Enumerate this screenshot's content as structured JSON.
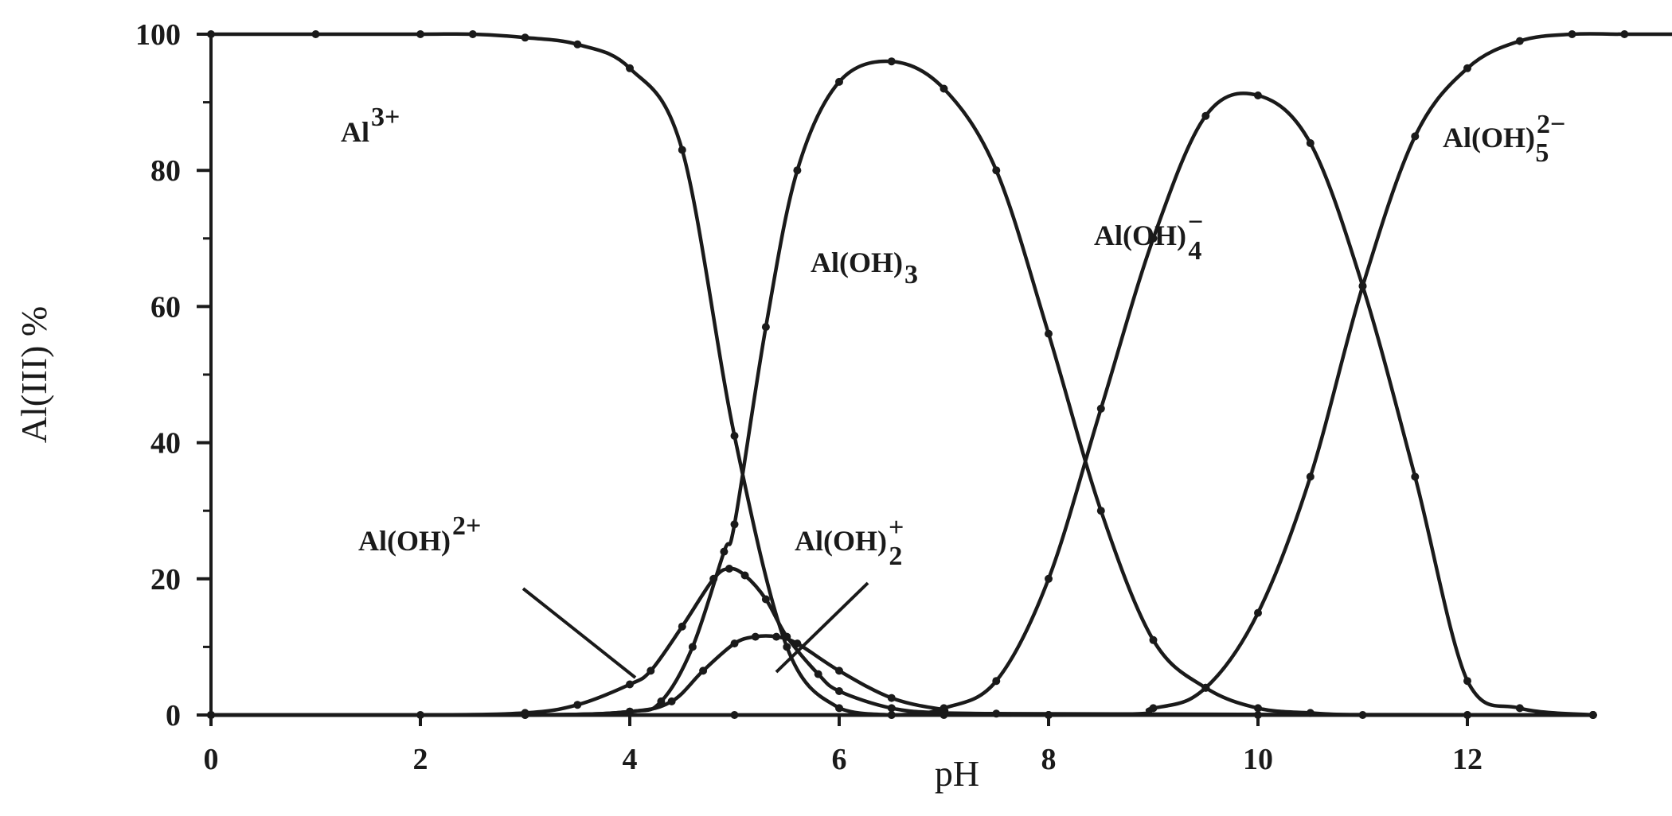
{
  "chart_data": {
    "type": "line",
    "title": "",
    "xlabel": "pH",
    "ylabel": "Al(III) %",
    "xlim": [
      0,
      14
    ],
    "ylim": [
      0,
      100
    ],
    "x_ticks": [
      "0",
      "2",
      "4",
      "6",
      "8",
      "10",
      "12"
    ],
    "y_ticks": [
      "0",
      "20",
      "40",
      "60",
      "80",
      "100"
    ],
    "grid": false,
    "legend": "none",
    "line_color": "#1a1a1a",
    "series": [
      {
        "label": {
          "base": "Al",
          "sup": "3+",
          "sub": ""
        },
        "x": [
          0,
          1,
          2,
          2.5,
          3,
          3.5,
          4,
          4.5,
          5,
          5.5,
          6,
          6.5,
          7,
          8,
          10,
          12,
          13.2
        ],
        "values": [
          100,
          100,
          100,
          100,
          99.5,
          98.5,
          95,
          83,
          41,
          10,
          1,
          0,
          0,
          0,
          0,
          0,
          0
        ]
      },
      {
        "label": {
          "base": "Al(OH)",
          "sup": "2+",
          "sub": ""
        },
        "x": [
          0,
          2,
          3,
          3.5,
          4,
          4.2,
          4.5,
          4.8,
          4.95,
          5.1,
          5.3,
          5.5,
          5.8,
          6,
          6.5,
          7,
          8,
          13.2
        ],
        "values": [
          0,
          0,
          0.3,
          1.5,
          4.5,
          6.5,
          13,
          20,
          21.5,
          20.5,
          17,
          11.5,
          6,
          3.5,
          1,
          0.3,
          0,
          0
        ]
      },
      {
        "label": {
          "base": "Al(OH)",
          "sup": "+",
          "sub": "2"
        },
        "x": [
          0,
          3,
          4,
          4.4,
          4.7,
          5,
          5.2,
          5.4,
          5.6,
          6,
          6.5,
          7,
          7.5,
          13.2
        ],
        "values": [
          0,
          0,
          0.5,
          2,
          6.5,
          10.5,
          11.5,
          11.5,
          10.5,
          6.5,
          2.5,
          0.8,
          0.2,
          0
        ]
      },
      {
        "label": {
          "base": "Al(OH)",
          "sup": "",
          "sub": "3"
        },
        "x": [
          0,
          3,
          4,
          4.3,
          4.6,
          4.9,
          5,
          5.3,
          5.6,
          6,
          6.5,
          7,
          7.5,
          8,
          8.5,
          9,
          9.5,
          10,
          10.5,
          11,
          12,
          13.2
        ],
        "values": [
          0,
          0,
          0.5,
          2,
          10,
          24,
          28,
          57,
          80,
          93,
          96,
          92,
          80,
          56,
          30,
          11,
          4,
          1,
          0.3,
          0,
          0,
          0
        ]
      },
      {
        "label": {
          "base": "Al(OH)",
          "sup": "−",
          "sub": "4"
        },
        "x": [
          0,
          5,
          6.5,
          7,
          7.5,
          8,
          8.5,
          9,
          9.5,
          10,
          10.5,
          11,
          11.5,
          12,
          12.5,
          13.2
        ],
        "values": [
          0,
          0,
          0,
          1,
          5,
          20,
          45,
          70,
          88,
          91,
          84,
          63,
          35,
          5,
          1,
          0
        ]
      },
      {
        "label": {
          "base": "Al(OH)",
          "sup": "2−",
          "sub": "5"
        },
        "x": [
          0,
          8,
          9,
          9.5,
          10,
          10.5,
          11,
          11.5,
          12,
          12.5,
          13,
          13.5,
          14
        ],
        "values": [
          0,
          0,
          1,
          4,
          15,
          35,
          63,
          85,
          95,
          99,
          100,
          100,
          100
        ]
      }
    ]
  }
}
